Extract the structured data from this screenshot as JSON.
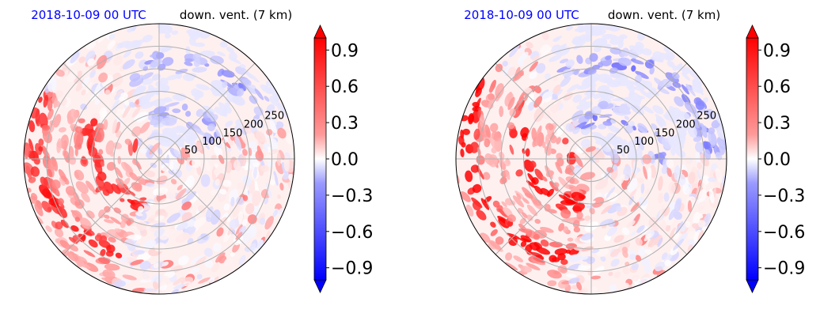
{
  "chart_data": [
    {
      "type": "heatmap",
      "title_left": "2018-10-09 00 UTC",
      "title_right": "down. vent. (7 km)",
      "title_left_color": "#0000ff",
      "radial_ticks": [
        50,
        100,
        150,
        200,
        250
      ],
      "colorbar": {
        "ticks": [
          0.9,
          0.6,
          0.3,
          0.0,
          -0.3,
          -0.6,
          -0.9
        ],
        "tick_labels": [
          "0.9",
          "0.6",
          "0.3",
          "0.0",
          "−0.3",
          "−0.6",
          "−0.9"
        ],
        "range": [
          -1.0,
          1.0
        ],
        "extend": "both",
        "colormap": "bwr",
        "colors": [
          "#0000ff",
          "#ffffff",
          "#ff0000"
        ]
      },
      "pattern": {
        "seed": 11,
        "red_sector": [
          150,
          250
        ],
        "blue_sector": [
          20,
          110
        ],
        "intensity": 0.7
      }
    },
    {
      "type": "heatmap",
      "title_left": "2018-10-09 00 UTC",
      "title_right": "down. vent. (7 km)",
      "title_left_color": "#0000ff",
      "radial_ticks": [
        50,
        100,
        150,
        200,
        250
      ],
      "colorbar": {
        "ticks": [
          0.9,
          0.6,
          0.3,
          0.0,
          -0.3,
          -0.6,
          -0.9
        ],
        "tick_labels": [
          "0.9",
          "0.6",
          "0.3",
          "0.0",
          "−0.3",
          "−0.6",
          "−0.9"
        ],
        "range": [
          -1.0,
          1.0
        ],
        "extend": "both",
        "colormap": "bwr",
        "colors": [
          "#0000ff",
          "#ffffff",
          "#ff0000"
        ]
      },
      "pattern": {
        "seed": 23,
        "red_sector": [
          140,
          260
        ],
        "blue_sector": [
          0,
          110
        ],
        "intensity": 1.0
      }
    }
  ]
}
